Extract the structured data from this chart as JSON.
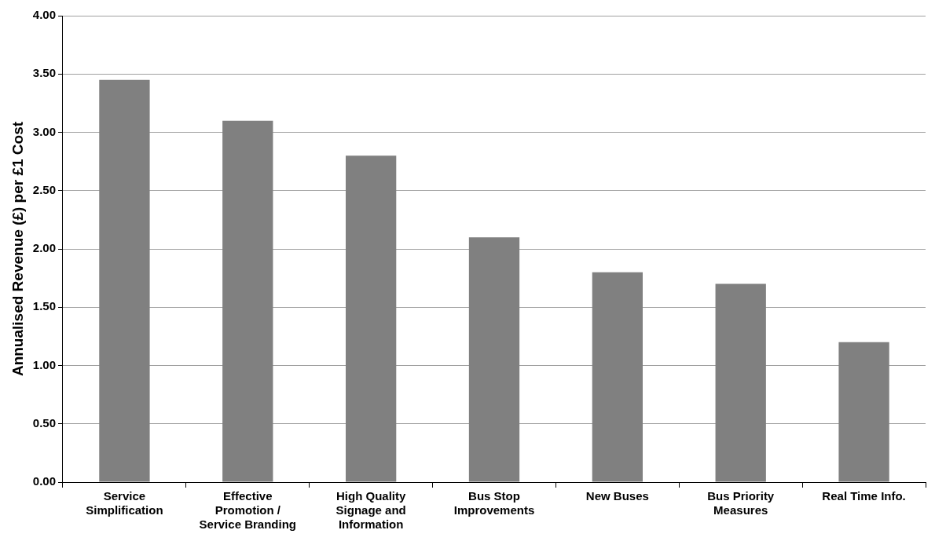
{
  "chart_data": {
    "type": "bar",
    "ylabel": "Annualised Revenue (£) per £1 Cost",
    "categories": [
      "Service Simplification",
      "Effective Promotion / Service Branding",
      "High Quality Signage and Information",
      "Bus Stop Improvements",
      "New Buses",
      "Bus Priority Measures",
      "Real Time Info."
    ],
    "values": [
      3.45,
      3.1,
      2.8,
      2.1,
      1.8,
      1.7,
      1.2
    ],
    "color": "#808080",
    "ylim": [
      0,
      4
    ],
    "yticks": [
      {
        "value": 0,
        "label": "0.00"
      },
      {
        "value": 0.5,
        "label": "0.50"
      },
      {
        "value": 1,
        "label": "1.00"
      },
      {
        "value": 1.5,
        "label": "1.50"
      },
      {
        "value": 2,
        "label": "2.00"
      },
      {
        "value": 2.5,
        "label": "2.50"
      },
      {
        "value": 3,
        "label": "3.00"
      },
      {
        "value": 3.5,
        "label": "3.50"
      },
      {
        "value": 4,
        "label": "4.00"
      }
    ],
    "grid": "y",
    "legend": false
  }
}
